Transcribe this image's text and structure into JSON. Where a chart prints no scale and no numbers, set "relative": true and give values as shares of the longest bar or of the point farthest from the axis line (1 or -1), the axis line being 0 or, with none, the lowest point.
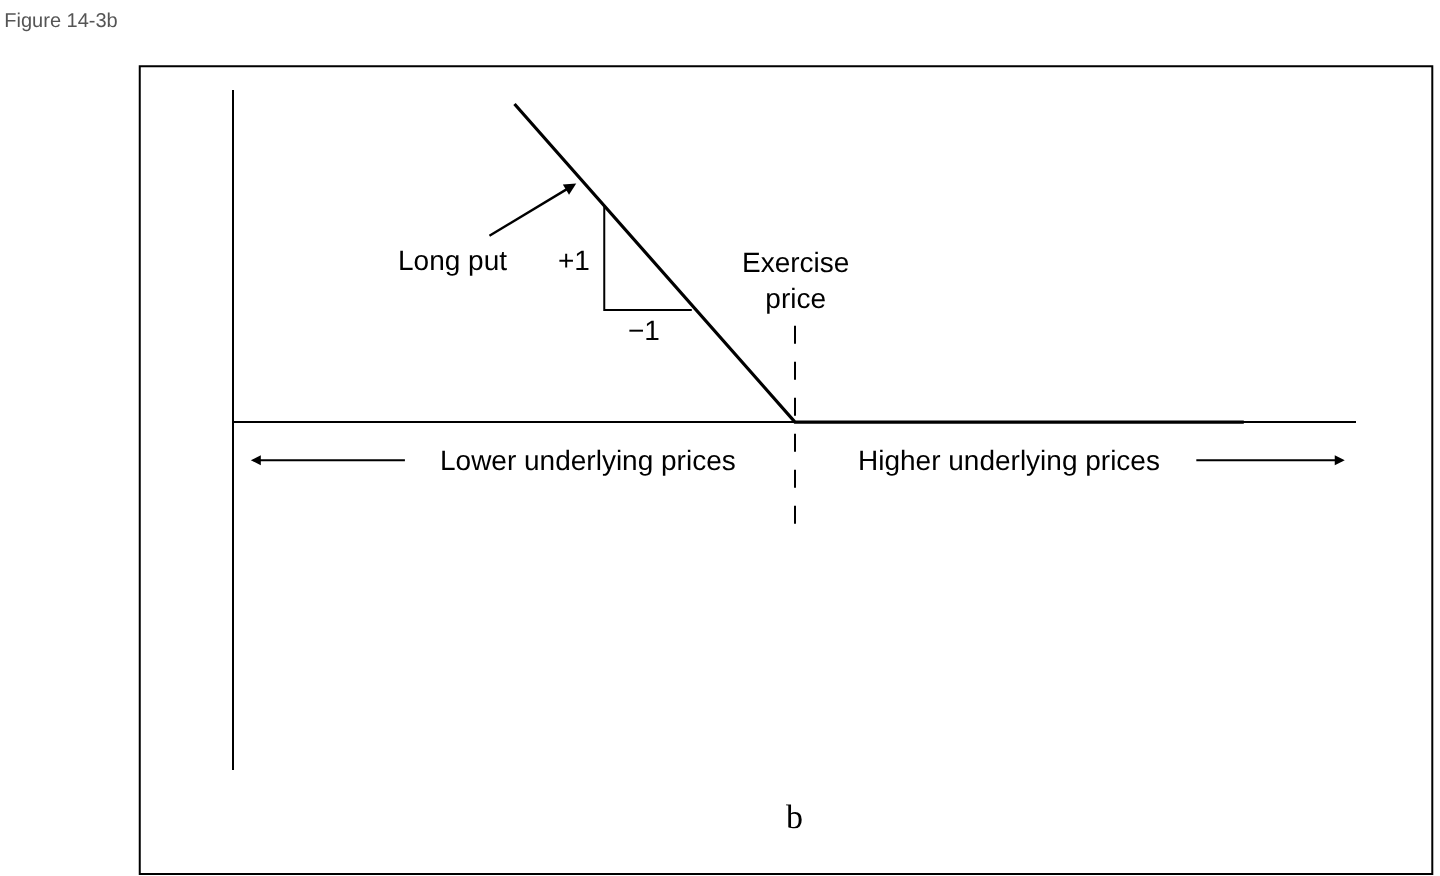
{
  "chart_data": {
    "type": "line",
    "relative": true,
    "title": "Figure 14-3b",
    "categories": [
      null,
      null,
      null,
      null,
      null,
      null,
      null,
      null,
      null,
      null,
      null,
      null,
      null,
      null,
      null,
      null,
      null,
      null,
      null,
      null,
      null
    ],
    "series": [
      {
        "name": null,
        "color": "#000000",
        "values": [
          null,
          null,
          null,
          null,
          null,
          1,
          null,
          null,
          null,
          null,
          0,
          null,
          null,
          null,
          null,
          null,
          null,
          null,
          0,
          null,
          null
        ]
      }
    ],
    "annotations": [
      "Long put",
      "+1",
      "−1",
      "Lower underlying prices",
      "Higher underlying prices",
      "b",
      "Exercise\nprice"
    ],
    "marker": "none",
    "line_style": "solid"
  }
}
